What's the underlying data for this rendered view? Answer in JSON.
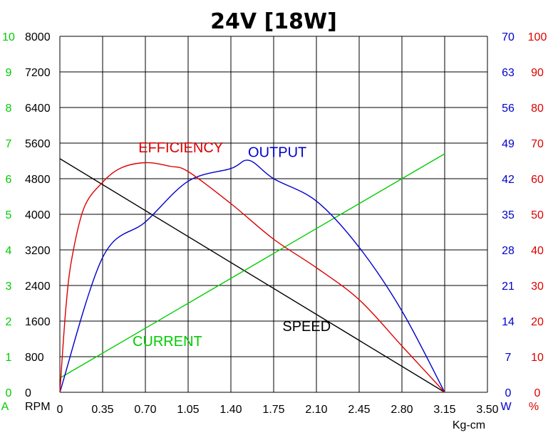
{
  "chart_data": {
    "type": "line",
    "title": "24V [18W]",
    "xlabel": "Kg-cm",
    "xlim": [
      0,
      3.5
    ],
    "x_ticks": [
      "0",
      "0.35",
      "0.70",
      "1.05",
      "1.40",
      "1.75",
      "2.10",
      "2.45",
      "2.80",
      "3.15",
      "3.50"
    ],
    "grid": true,
    "axes": {
      "current": {
        "unit": "A",
        "color": "#00cc00",
        "min": 0,
        "max": 10,
        "ticks": [
          "0",
          "1",
          "2",
          "3",
          "4",
          "5",
          "6",
          "7",
          "8",
          "9",
          "10"
        ]
      },
      "speed": {
        "unit": "RPM",
        "color": "#000000",
        "min": 0,
        "max": 8000,
        "ticks": [
          "0",
          "800",
          "1600",
          "2400",
          "3200",
          "4000",
          "4800",
          "5600",
          "6400",
          "7200",
          "8000"
        ]
      },
      "output": {
        "unit": "W",
        "color": "#0000cc",
        "min": 0,
        "max": 70,
        "ticks": [
          "0",
          "7",
          "14",
          "21",
          "28",
          "35",
          "42",
          "49",
          "56",
          "63",
          "70"
        ]
      },
      "efficiency": {
        "unit": "%",
        "color": "#dd0000",
        "min": 0,
        "max": 100,
        "ticks": [
          "0",
          "10",
          "20",
          "30",
          "40",
          "50",
          "60",
          "70",
          "80",
          "90",
          "100"
        ]
      }
    },
    "series": [
      {
        "name": "SPEED",
        "axis": "speed",
        "color": "#000000",
        "points": [
          [
            0,
            5250
          ],
          [
            3.15,
            0
          ]
        ]
      },
      {
        "name": "CURRENT",
        "axis": "current",
        "color": "#00cc00",
        "points": [
          [
            0,
            0.4
          ],
          [
            3.15,
            6.7
          ]
        ]
      },
      {
        "name": "OUTPUT",
        "axis": "output",
        "color": "#0000cc",
        "points": [
          [
            0,
            0
          ],
          [
            0.35,
            26.5
          ],
          [
            0.7,
            33.5
          ],
          [
            1.05,
            41.5
          ],
          [
            1.4,
            44.0
          ],
          [
            1.55,
            45.6
          ],
          [
            1.75,
            42.0
          ],
          [
            2.1,
            37.6
          ],
          [
            2.45,
            28.5
          ],
          [
            2.8,
            16.0
          ],
          [
            3.15,
            0
          ]
        ]
      },
      {
        "name": "EFFICIENCY",
        "axis": "efficiency",
        "color": "#dd0000",
        "points": [
          [
            0,
            0
          ],
          [
            0.05,
            24
          ],
          [
            0.1,
            38
          ],
          [
            0.2,
            52
          ],
          [
            0.35,
            59
          ],
          [
            0.5,
            63
          ],
          [
            0.7,
            64.5
          ],
          [
            0.9,
            63.5
          ],
          [
            1.05,
            62
          ],
          [
            1.4,
            53
          ],
          [
            1.75,
            43
          ],
          [
            2.1,
            35
          ],
          [
            2.45,
            26
          ],
          [
            2.8,
            13
          ],
          [
            3.15,
            0
          ]
        ]
      }
    ],
    "annotations": [
      {
        "text": "EFFICIENCY",
        "color": "#dd0000",
        "x": 0.99,
        "axis": "efficiency",
        "y": 67.4
      },
      {
        "text": "OUTPUT",
        "color": "#0000cc",
        "x": 1.78,
        "axis": "output",
        "y": 46.3
      },
      {
        "text": "CURRENT",
        "color": "#00cc00",
        "x": 0.88,
        "axis": "current",
        "y": 1.3
      },
      {
        "text": "SPEED",
        "color": "#000000",
        "x": 2.02,
        "axis": "speed",
        "y": 1380
      }
    ]
  }
}
